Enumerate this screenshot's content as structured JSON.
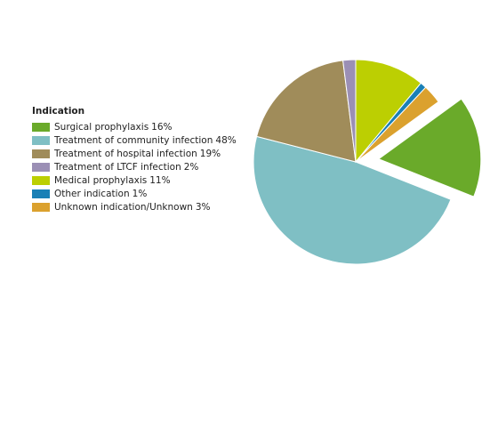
{
  "chart_data": {
    "type": "pie",
    "legend_title": "Indication",
    "categories": [
      "Surgical prophylaxis",
      "Treatment of community infection",
      "Treatment of hospital infection",
      "Treatment of LTCF infection",
      "Medical prophylaxis",
      "Other indication",
      "Unknown indication/Unknown"
    ],
    "values": [
      16,
      48,
      19,
      2,
      11,
      1,
      3
    ],
    "value_labels": [
      "16%",
      "48%",
      "19%",
      "2%",
      "11%",
      "1%",
      "3%"
    ],
    "colors": [
      "#6aaa2a",
      "#7fbfc4",
      "#a08c5a",
      "#9b8fb5",
      "#bccf02",
      "#1a80b6",
      "#dba12e"
    ],
    "explode": [
      true,
      false,
      false,
      false,
      false,
      false,
      false
    ],
    "legend_position": "left"
  }
}
